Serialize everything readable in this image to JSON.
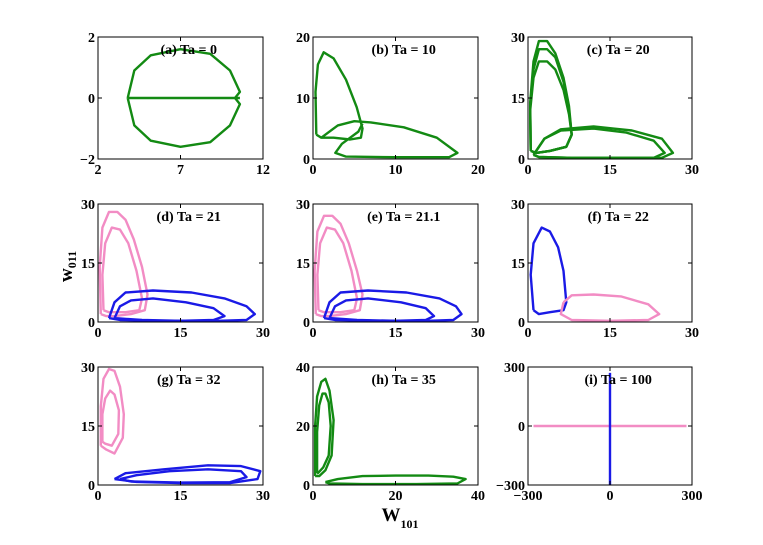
{
  "chart_data": [
    {
      "type": "line",
      "title": "(a) Ta = 0",
      "xlim": [
        2,
        12
      ],
      "ylim": [
        -2,
        2
      ],
      "xticks": [
        2,
        7,
        12
      ],
      "yticks": [
        {
          "value": -2,
          "label": "−2"
        },
        0,
        2
      ],
      "series": [
        {
          "color": "#138a13",
          "x": [
            3.8,
            4.2,
            5.2,
            7,
            8.8,
            10.0,
            10.6,
            10.3,
            10.6,
            10.0,
            8.8,
            7,
            5.2,
            4.2,
            3.8
          ],
          "y": [
            0,
            0.9,
            1.4,
            1.6,
            1.45,
            0.9,
            0.2,
            0,
            -0.2,
            -0.9,
            -1.45,
            -1.6,
            -1.4,
            -0.9,
            0
          ]
        },
        {
          "color": "#138a13",
          "x": [
            3.8,
            10.6
          ],
          "y": [
            0,
            0
          ]
        }
      ]
    },
    {
      "type": "line",
      "title": "(b) Ta = 10",
      "xlim": [
        0,
        20
      ],
      "ylim": [
        0,
        20
      ],
      "xticks": [
        0,
        10,
        20
      ],
      "yticks": [
        0,
        10,
        20
      ],
      "series": [
        {
          "color": "#138a13",
          "x": [
            0.4,
            0.3,
            0.6,
            1.3,
            2.5,
            4,
            5.3,
            6,
            5.8,
            4.5,
            2.5,
            1,
            0.4
          ],
          "y": [
            4,
            11,
            15.5,
            17.5,
            16.5,
            13,
            8.5,
            5,
            3.5,
            3.2,
            3.5,
            3.5,
            4
          ]
        },
        {
          "color": "#138a13",
          "x": [
            1,
            3,
            5,
            7,
            11,
            15,
            17.5,
            16.5,
            10,
            4,
            2.7,
            3.5,
            5.5,
            6
          ],
          "y": [
            3.5,
            5.5,
            6.2,
            6,
            5.2,
            3.5,
            1,
            0.3,
            0.3,
            0.4,
            1,
            2.5,
            4.5,
            5.8
          ]
        }
      ]
    },
    {
      "type": "line",
      "title": "(c) Ta = 20",
      "xlim": [
        0,
        30
      ],
      "ylim": [
        0,
        30
      ],
      "xticks": [
        0,
        15,
        30
      ],
      "yticks": [
        0,
        15,
        30
      ],
      "series": [
        {
          "color": "#138a13",
          "x": [
            0.5,
            0.4,
            1,
            2,
            3.5,
            5,
            6.5,
            7.5,
            8,
            7,
            4,
            1.5,
            0.5
          ],
          "y": [
            2,
            12,
            20,
            24,
            24,
            22,
            17,
            11,
            6,
            3,
            2,
            1.5,
            2
          ]
        },
        {
          "color": "#138a13",
          "x": [
            0.5,
            0.4,
            1,
            2,
            3.5,
            5,
            6.5,
            7.5,
            8,
            7,
            4,
            1.5,
            0.5
          ],
          "y": [
            2,
            13,
            22,
            27,
            27,
            25,
            19,
            12,
            6,
            3,
            2,
            1.5,
            2
          ]
        },
        {
          "color": "#138a13",
          "x": [
            0.5,
            0.4,
            1,
            2,
            3.5,
            5,
            6.5,
            7.5,
            8,
            7,
            4,
            1.5,
            0.5
          ],
          "y": [
            2,
            14,
            24,
            29,
            29,
            26,
            20,
            13,
            6,
            3,
            2,
            1.5,
            2
          ]
        },
        {
          "color": "#138a13",
          "x": [
            1,
            3,
            6,
            12,
            18,
            23,
            25,
            23,
            16,
            8,
            2,
            1
          ],
          "y": [
            1,
            5,
            7,
            7.5,
            6.5,
            4.5,
            1.5,
            0.3,
            0.3,
            0.3,
            0.5,
            1
          ]
        },
        {
          "color": "#138a13",
          "x": [
            1,
            3,
            6,
            12,
            19,
            24.5,
            26.5,
            24.5,
            17,
            8,
            2,
            1
          ],
          "y": [
            1,
            5,
            7.3,
            8,
            7,
            5,
            1.5,
            0.3,
            0.3,
            0.3,
            0.5,
            1
          ]
        }
      ]
    },
    {
      "type": "line",
      "title": "(d) Ta = 21",
      "xlim": [
        0,
        30
      ],
      "ylim": [
        0,
        30
      ],
      "xticks": [
        0,
        15,
        30
      ],
      "yticks": [
        0,
        15,
        30
      ],
      "ylabel": {
        "text": "w",
        "sub": "011"
      },
      "series": [
        {
          "color": "#f28cc4",
          "x": [
            0.5,
            0.3,
            0.8,
            2,
            3.5,
            5,
            6.5,
            8,
            9,
            8.5,
            6,
            3,
            1.5,
            0.5
          ],
          "y": [
            2,
            14,
            24,
            28,
            28,
            26,
            21,
            14,
            7,
            3,
            2,
            1.5,
            1.5,
            2
          ]
        },
        {
          "color": "#f28cc4",
          "x": [
            1,
            0.8,
            1.3,
            2.5,
            4,
            5.5,
            7,
            8,
            7.5,
            5,
            2,
            1
          ],
          "y": [
            3,
            12,
            20,
            24,
            23.5,
            20,
            13,
            6,
            3,
            2.5,
            2.5,
            3
          ]
        },
        {
          "color": "#1a1ae6",
          "x": [
            2,
            3,
            5,
            10,
            17,
            23,
            27,
            28.5,
            27,
            22,
            12,
            4,
            2
          ],
          "y": [
            1,
            5,
            7.5,
            8,
            7.5,
            6,
            4,
            2,
            0.5,
            0.3,
            0.3,
            0.5,
            1
          ]
        },
        {
          "color": "#1a1ae6",
          "x": [
            3,
            4,
            6,
            10,
            16,
            21,
            23,
            21,
            15,
            8,
            3
          ],
          "y": [
            1,
            4,
            5.5,
            6,
            5,
            3.5,
            1.5,
            0.5,
            0.3,
            0.5,
            1
          ]
        }
      ]
    },
    {
      "type": "line",
      "title": "(e) Ta = 21.1",
      "xlim": [
        0,
        30
      ],
      "ylim": [
        0,
        30
      ],
      "xticks": [
        0,
        15,
        30
      ],
      "yticks": [
        0,
        15,
        30
      ],
      "series": [
        {
          "color": "#f28cc4",
          "x": [
            0.5,
            0.3,
            0.8,
            2,
            3.5,
            5,
            6.5,
            8,
            9,
            8.5,
            6,
            3,
            1.5,
            0.5
          ],
          "y": [
            2,
            13,
            23,
            27,
            27,
            25,
            20,
            13,
            7,
            3,
            2,
            1.5,
            1.5,
            2
          ]
        },
        {
          "color": "#f28cc4",
          "x": [
            1,
            0.8,
            1.3,
            2.5,
            4,
            5.5,
            7,
            8,
            7.5,
            5,
            2,
            1
          ],
          "y": [
            3,
            12,
            20,
            24,
            23.5,
            20,
            13,
            6,
            3,
            2.5,
            2.5,
            3
          ]
        },
        {
          "color": "#1a1ae6",
          "x": [
            2,
            3,
            5,
            10,
            17,
            23,
            26,
            27,
            25.5,
            21,
            12,
            4,
            2
          ],
          "y": [
            1,
            5,
            7.5,
            8,
            7.5,
            6,
            4,
            2,
            0.5,
            0.3,
            0.3,
            0.5,
            1
          ]
        },
        {
          "color": "#1a1ae6",
          "x": [
            3,
            4,
            6,
            10,
            16,
            20.5,
            22,
            20.5,
            15,
            8,
            3
          ],
          "y": [
            1,
            4,
            5.5,
            6,
            5,
            3.5,
            1.5,
            0.5,
            0.3,
            0.5,
            1
          ]
        }
      ]
    },
    {
      "type": "line",
      "title": "(f) Ta = 22",
      "xlim": [
        0,
        30
      ],
      "ylim": [
        0,
        30
      ],
      "xticks": [
        0,
        15,
        30
      ],
      "yticks": [
        0,
        15,
        30
      ],
      "series": [
        {
          "color": "#1a1ae6",
          "x": [
            1,
            0.5,
            1,
            2.5,
            4,
            5.5,
            6.5,
            7,
            6.5,
            4,
            2,
            1
          ],
          "y": [
            3,
            12,
            20,
            24,
            23,
            19,
            13,
            5,
            3,
            2.5,
            2,
            3
          ]
        },
        {
          "color": "#f28cc4",
          "x": [
            6.5,
            8,
            12,
            17,
            22,
            24,
            22,
            15,
            8,
            6,
            6.5
          ],
          "y": [
            5,
            6.8,
            7,
            6.5,
            4.5,
            2,
            0.5,
            0.3,
            0.5,
            2,
            5
          ]
        }
      ]
    },
    {
      "type": "line",
      "title": "(g) Ta = 32",
      "xlim": [
        0,
        30
      ],
      "ylim": [
        0,
        30
      ],
      "xticks": [
        0,
        15,
        30
      ],
      "yticks": [
        0,
        15,
        30
      ],
      "series": [
        {
          "color": "#f28cc4",
          "x": [
            0.5,
            0.5,
            1,
            2,
            3,
            4,
            4.7,
            4.5,
            3,
            1.5,
            0.5
          ],
          "y": [
            10,
            20,
            27,
            29.5,
            29,
            25,
            18,
            12,
            8,
            9,
            10
          ]
        },
        {
          "color": "#f28cc4",
          "x": [
            0.8,
            0.8,
            1.3,
            2.2,
            3,
            3.8,
            3.7,
            2.5,
            1.3,
            0.8
          ],
          "y": [
            11,
            18,
            22,
            24,
            23,
            19,
            13,
            10,
            10.5,
            11
          ]
        },
        {
          "color": "#1a1ae6",
          "x": [
            3,
            5,
            12,
            20,
            26,
            29.5,
            29,
            24,
            15,
            7,
            3
          ],
          "y": [
            1.5,
            3,
            4,
            5,
            4.8,
            3.5,
            1.5,
            0.5,
            0.5,
            0.8,
            1.5
          ]
        },
        {
          "color": "#1a1ae6",
          "x": [
            4,
            7,
            13,
            20,
            26,
            27,
            24,
            15,
            6,
            4
          ],
          "y": [
            1.5,
            2.5,
            3.5,
            4,
            3.5,
            2,
            0.7,
            0.6,
            0.9,
            1.5
          ]
        }
      ]
    },
    {
      "type": "line",
      "title": "(h) Ta = 35",
      "xlim": [
        0,
        40
      ],
      "ylim": [
        0,
        40
      ],
      "xticks": [
        0,
        20,
        40
      ],
      "yticks": [
        0,
        20,
        40
      ],
      "xlabel": {
        "text": "W",
        "sub": "101"
      },
      "series": [
        {
          "color": "#138a13",
          "x": [
            0.5,
            0.5,
            1,
            2,
            3,
            4,
            5,
            4.5,
            3,
            1.5,
            0.5
          ],
          "y": [
            3,
            20,
            30,
            35,
            36,
            32,
            22,
            10,
            5,
            3,
            3
          ]
        },
        {
          "color": "#138a13",
          "x": [
            1,
            1,
            1.5,
            2.3,
            3,
            3.8,
            4.3,
            3.8,
            2.5,
            1.2,
            1
          ],
          "y": [
            4,
            18,
            27,
            31,
            31,
            28,
            20,
            10,
            6,
            4,
            4
          ]
        },
        {
          "color": "#138a13",
          "x": [
            3,
            6,
            12,
            20,
            28,
            34,
            37,
            35,
            25,
            12,
            4,
            3
          ],
          "y": [
            1,
            2,
            3,
            3.2,
            3.2,
            2.8,
            2,
            0.5,
            0.3,
            0.3,
            0.5,
            1
          ]
        }
      ]
    },
    {
      "type": "line",
      "title": "(i) Ta = 100",
      "xlim": [
        -300,
        300
      ],
      "ylim": [
        -300,
        300
      ],
      "xticks": [
        {
          "value": -300,
          "label": "−300"
        },
        0,
        300
      ],
      "yticks": [
        {
          "value": -300,
          "label": "−300"
        },
        0,
        300
      ],
      "series": [
        {
          "color": "#f28cc4",
          "x": [
            -280,
            280
          ],
          "y": [
            0,
            0
          ]
        },
        {
          "color": "#1a1ae6",
          "x": [
            0,
            0
          ],
          "y": [
            -300,
            270
          ]
        }
      ]
    }
  ]
}
